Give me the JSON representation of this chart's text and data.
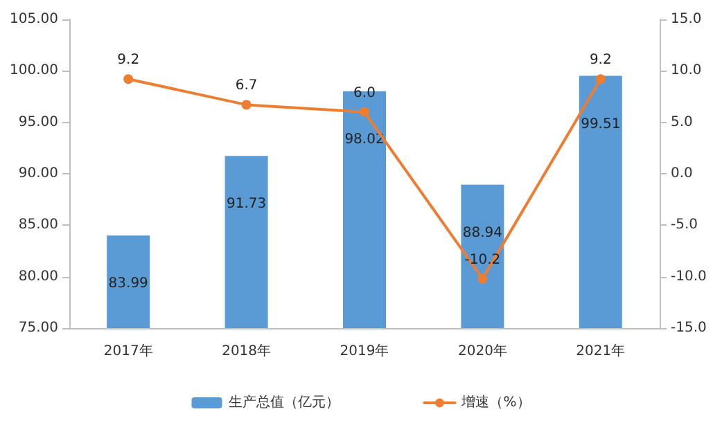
{
  "chart_data": {
    "type": "bar",
    "categories": [
      "2017年",
      "2018年",
      "2019年",
      "2020年",
      "2021年"
    ],
    "series": [
      {
        "name": "生产总值（亿元）",
        "color": "#5b9bd5",
        "values": [
          83.99,
          91.73,
          98.02,
          88.94,
          99.51
        ]
      },
      {
        "name": "增速（%）",
        "type": "line",
        "axis": "y2",
        "color": "#ed7d31",
        "values": [
          9.2,
          6.7,
          6.0,
          -10.2,
          9.2
        ],
        "value_labels": [
          "9.2",
          "6.7",
          "6.0",
          "-10.2",
          "9.2"
        ]
      }
    ],
    "ylim": [
      75,
      105
    ],
    "yticks": [
      {
        "value": 75,
        "label": "75.00"
      },
      {
        "value": 80,
        "label": "80.00"
      },
      {
        "value": 85,
        "label": "85.00"
      },
      {
        "value": 90,
        "label": "90.00"
      },
      {
        "value": 95,
        "label": "95.00"
      },
      {
        "value": 100,
        "label": "100.00"
      },
      {
        "value": 105,
        "label": "105.00"
      }
    ],
    "y2lim": [
      -15,
      15
    ],
    "y2ticks": [
      {
        "value": -15,
        "label": "-15.0"
      },
      {
        "value": -10,
        "label": "-10.0"
      },
      {
        "value": -5,
        "label": "-5.0"
      },
      {
        "value": 0,
        "label": "0.0"
      },
      {
        "value": 5,
        "label": "5.0"
      },
      {
        "value": 10,
        "label": "10.0"
      },
      {
        "value": 15,
        "label": "15.0"
      }
    ],
    "data_labels": true,
    "marker": "circle",
    "line_style": "solid",
    "legend": "bottom",
    "grid": false
  }
}
